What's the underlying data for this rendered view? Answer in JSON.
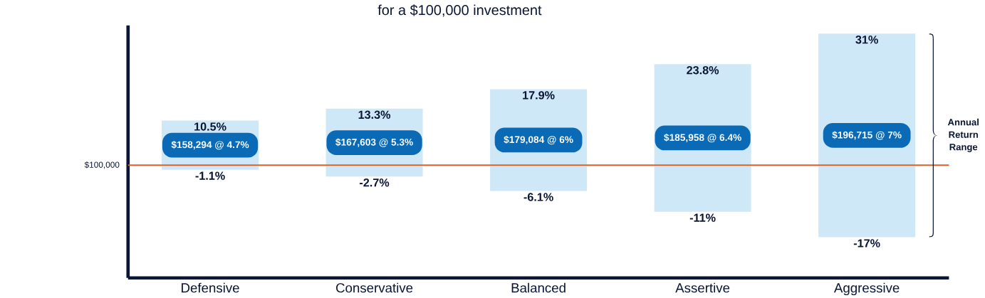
{
  "chart_data": {
    "type": "bar",
    "subtitle": "for a $100,000 investment",
    "categories": [
      "Defensive",
      "Conservative",
      "Balanced",
      "Assertive",
      "Aggressive"
    ],
    "stacked": true,
    "series": [
      {
        "color": "#cfe8f7",
        "values": [
          -1.1,
          -2.7,
          -6.1,
          -11,
          -17
        ],
        "value_labels": [
          "-1.1%",
          "-2.7%",
          "-6.1%",
          "-11%",
          "-17%"
        ]
      },
      {
        "color": "#cfe8f7",
        "values": [
          10.5,
          13.3,
          17.9,
          23.8,
          31
        ],
        "value_labels": [
          "10.5%",
          "13.3%",
          "17.9%",
          "23.8%",
          "31%"
        ]
      }
    ],
    "tick_labels": "x",
    "ref_lines": [
      {
        "axis": "y",
        "value": 0,
        "color": "#d9622b"
      }
    ],
    "annotations": [
      "$100,000",
      "$158,294 @ 4.7%",
      "$167,603 @ 5.3%",
      "$179,084 @ 6%",
      "$185,958 @ 6.4%",
      "$196,715 @ 7%",
      "Annual Return Range"
    ]
  }
}
